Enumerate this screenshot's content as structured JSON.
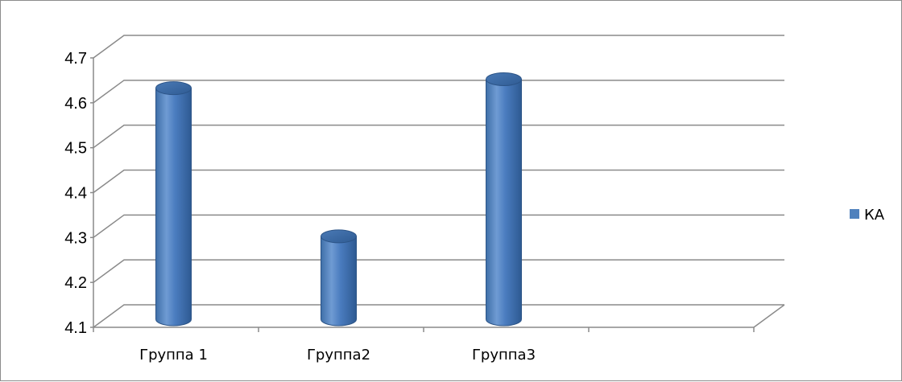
{
  "chart_data": {
    "type": "bar",
    "style": "3d-cylinder",
    "categories": [
      "Группа 1",
      "Группа2",
      "Группа3",
      ""
    ],
    "series": [
      {
        "name": "КА",
        "values": [
          4.62,
          4.29,
          4.64,
          null
        ],
        "color": "#4f81bd"
      }
    ],
    "yticks": [
      "4.1",
      "4.2",
      "4.3",
      "4.4",
      "4.5",
      "4.6",
      "4.7"
    ],
    "ylim": [
      4.1,
      4.7
    ],
    "grid": true,
    "legend": "right",
    "title": "",
    "xlabel": "",
    "ylabel": ""
  }
}
